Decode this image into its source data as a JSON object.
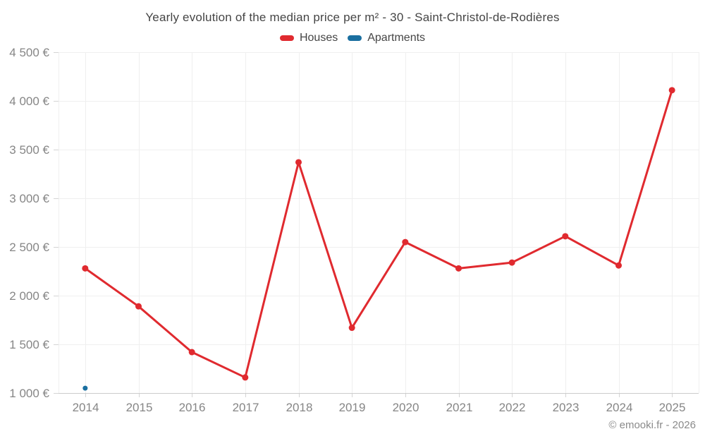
{
  "chart": {
    "title": "Yearly evolution of the median price per m² - 30 - Saint-Christol-de-Rodières",
    "footer": "© emooki.fr - 2026",
    "legend": [
      {
        "label": "Houses",
        "color": "#e02a2f"
      },
      {
        "label": "Apartments",
        "color": "#1a6fa0"
      }
    ]
  },
  "chart_data": {
    "type": "line",
    "title": "Yearly evolution of the median price per m² - 30 - Saint-Christol-de-Rodières",
    "categories": [
      "2014",
      "2015",
      "2016",
      "2017",
      "2018",
      "2019",
      "2020",
      "2021",
      "2022",
      "2023",
      "2024",
      "2025"
    ],
    "series": [
      {
        "name": "Houses",
        "color": "#e02a2f",
        "point_radius": 4.5,
        "values": [
          2280,
          1890,
          1420,
          1160,
          3370,
          1670,
          2550,
          2280,
          2340,
          2610,
          2310,
          4110
        ]
      },
      {
        "name": "Apartments",
        "color": "#1a6fa0",
        "point_radius": 3.5,
        "values": [
          1050,
          null,
          null,
          null,
          null,
          null,
          null,
          null,
          null,
          null,
          null,
          null
        ]
      }
    ],
    "xlabel": "",
    "ylabel": "",
    "ylim": [
      1000,
      4500
    ],
    "yticks": [
      {
        "value": 1000,
        "label": "1 000 €"
      },
      {
        "value": 1500,
        "label": "1 500 €"
      },
      {
        "value": 2000,
        "label": "2 000 €"
      },
      {
        "value": 2500,
        "label": "2 500 €"
      },
      {
        "value": 3000,
        "label": "3 000 €"
      },
      {
        "value": 3500,
        "label": "3 500 €"
      },
      {
        "value": 4000,
        "label": "4 000 €"
      },
      {
        "value": 4500,
        "label": "4 500 €"
      }
    ],
    "grid": true,
    "legend_position": "top",
    "grid_color": "#efefef",
    "axis_color": "#cccccc",
    "tick_color": "#d4d4d4",
    "label_color": "#868686",
    "title_color": "#454545"
  }
}
